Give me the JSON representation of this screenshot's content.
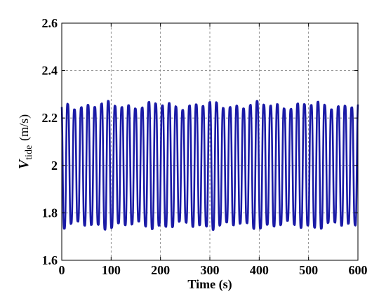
{
  "chart_data": {
    "type": "line",
    "xlabel": "Time (s)",
    "ylabel": {
      "symbol": "V",
      "subscript": "tide",
      "unit": "(m/s)"
    },
    "xlim": [
      0,
      600
    ],
    "ylim": [
      1.6,
      2.6
    ],
    "x_ticks": [
      "0",
      "100",
      "200",
      "300",
      "400",
      "500",
      "600"
    ],
    "y_ticks": [
      "1.6",
      "1.8",
      "2",
      "2.2",
      "2.4",
      "2.6"
    ],
    "grid": true,
    "series": [
      {
        "color": "#1a1aa6",
        "signal": {
          "mean": 2.0,
          "period_s": 13.7,
          "amplitude_range": [
            0.21,
            0.31
          ],
          "min_value": 1.69,
          "max_value": 2.31
        }
      }
    ]
  }
}
